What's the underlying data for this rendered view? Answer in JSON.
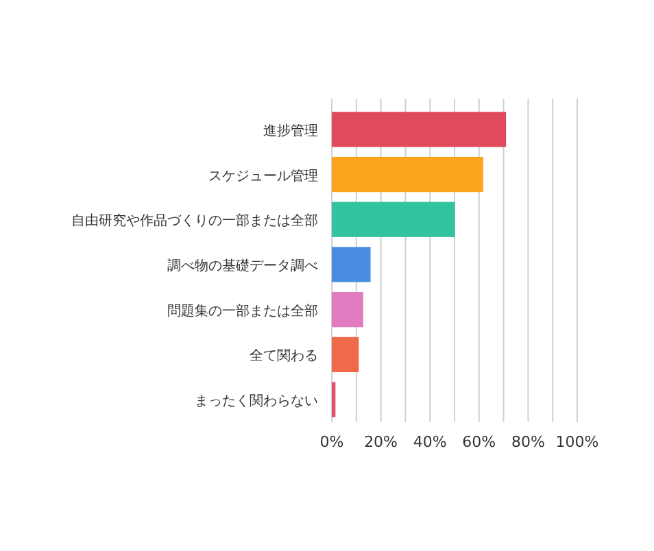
{
  "chart_data": {
    "type": "bar",
    "orientation": "horizontal",
    "categories": [
      "進捗管理",
      "スケジュール管理",
      "自由研究や作品づくりの一部または全部",
      "調べ物の基礎データ調べ",
      "問題集の一部または全部",
      "全て関わる",
      "まったく関わらない"
    ],
    "values": [
      71,
      61.7,
      50.2,
      15.8,
      12.8,
      11,
      1.5
    ],
    "colors": [
      "#e04a5f",
      "#fca41e",
      "#34c3a0",
      "#4a8de0",
      "#e07bc0",
      "#ef6a4a",
      "#e0506a"
    ],
    "xlim": [
      0,
      100
    ],
    "xticks": [
      {
        "value": 0,
        "label": "0%"
      },
      {
        "value": 10,
        "label": null
      },
      {
        "value": 20,
        "label": "20%"
      },
      {
        "value": 30,
        "label": null
      },
      {
        "value": 40,
        "label": "40%"
      },
      {
        "value": 50,
        "label": null
      },
      {
        "value": 60,
        "label": "60%"
      },
      {
        "value": 70,
        "label": null
      },
      {
        "value": 80,
        "label": "80%"
      },
      {
        "value": 90,
        "label": null
      },
      {
        "value": 100,
        "label": "100%"
      }
    ],
    "grid": "x"
  }
}
